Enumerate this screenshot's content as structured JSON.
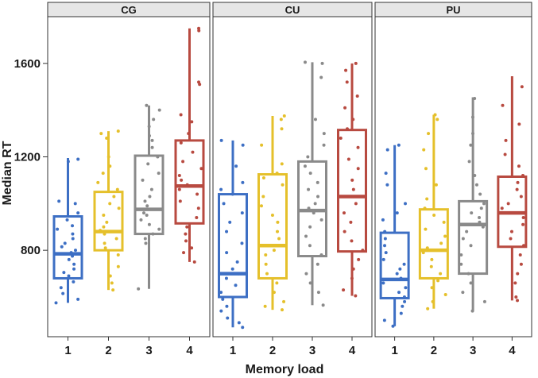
{
  "chart_data": {
    "type": "boxplot",
    "xlabel": "Memory load",
    "ylabel": "Median RT",
    "ylim": [
      430,
      1800
    ],
    "yticks": [
      800,
      1200,
      1600
    ],
    "categories": [
      "1",
      "2",
      "3",
      "4"
    ],
    "colors": [
      "#3d6fc4",
      "#e5c02b",
      "#8a8a8a",
      "#b84a40"
    ],
    "panels": [
      {
        "name": "CG",
        "boxes": [
          {
            "category": "1",
            "lower": 575,
            "q1": 680,
            "median": 785,
            "q3": 945,
            "upper": 1195,
            "points": [
              575,
              590,
              615,
              640,
              665,
              690,
              705,
              720,
              740,
              760,
              775,
              790,
              800,
              815,
              830,
              850,
              870,
              890,
              905,
              930,
              960,
              1000,
              1010,
              1180,
              1190
            ]
          },
          {
            "category": "2",
            "lower": 630,
            "q1": 800,
            "median": 880,
            "q3": 1050,
            "upper": 1310,
            "points": [
              630,
              660,
              690,
              730,
              780,
              810,
              830,
              850,
              870,
              885,
              900,
              920,
              950,
              980,
              1000,
              1030,
              1060,
              1090,
              1130,
              1160,
              1200,
              1280,
              1300,
              1310
            ]
          },
          {
            "category": "3",
            "lower": 635,
            "q1": 870,
            "median": 975,
            "q3": 1205,
            "upper": 1420,
            "points": [
              635,
              830,
              850,
              870,
              890,
              910,
              930,
              950,
              960,
              975,
              990,
              1010,
              1030,
              1060,
              1100,
              1130,
              1170,
              1200,
              1240,
              1270,
              1290,
              1330,
              1360,
              1400,
              1420
            ]
          },
          {
            "category": "4",
            "lower": 750,
            "q1": 915,
            "median": 1075,
            "q3": 1270,
            "upper": 1750,
            "points": [
              750,
              790,
              810,
              840,
              870,
              900,
              940,
              980,
              1010,
              1040,
              1060,
              1080,
              1100,
              1120,
              1150,
              1180,
              1220,
              1260,
              1300,
              1350,
              1380,
              1510,
              1520,
              1740,
              1750
            ]
          }
        ]
      },
      {
        "name": "CU",
        "boxes": [
          {
            "category": "1",
            "lower": 470,
            "q1": 600,
            "median": 700,
            "q3": 1040,
            "upper": 1270,
            "points": [
              470,
              490,
              510,
              540,
              560,
              590,
              620,
              650,
              680,
              700,
              720,
              750,
              790,
              830,
              880,
              920,
              960,
              1000,
              1040,
              1060,
              1090,
              1160,
              1250,
              1270
            ]
          },
          {
            "category": "2",
            "lower": 545,
            "q1": 680,
            "median": 820,
            "q3": 1125,
            "upper": 1375,
            "points": [
              545,
              560,
              580,
              620,
              660,
              700,
              740,
              780,
              800,
              820,
              850,
              880,
              920,
              950,
              990,
              1030,
              1080,
              1110,
              1130,
              1170,
              1250,
              1320,
              1360,
              1375
            ]
          },
          {
            "category": "3",
            "lower": 565,
            "q1": 775,
            "median": 970,
            "q3": 1180,
            "upper": 1605,
            "points": [
              565,
              620,
              660,
              700,
              740,
              780,
              820,
              860,
              900,
              930,
              960,
              980,
              1000,
              1030,
              1060,
              1090,
              1130,
              1160,
              1200,
              1250,
              1300,
              1360,
              1540,
              1600,
              1605
            ]
          },
          {
            "category": "4",
            "lower": 605,
            "q1": 795,
            "median": 1030,
            "q3": 1315,
            "upper": 1600,
            "points": [
              605,
              630,
              680,
              720,
              760,
              800,
              840,
              880,
              920,
              960,
              1000,
              1030,
              1060,
              1100,
              1150,
              1190,
              1240,
              1280,
              1320,
              1360,
              1410,
              1460,
              1520,
              1570,
              1600
            ]
          }
        ]
      },
      {
        "name": "PU",
        "boxes": [
          {
            "category": "1",
            "lower": 475,
            "q1": 595,
            "median": 675,
            "q3": 875,
            "upper": 1250,
            "points": [
              475,
              500,
              530,
              560,
              580,
              600,
              620,
              640,
              660,
              680,
              700,
              720,
              740,
              760,
              790,
              820,
              850,
              880,
              930,
              960,
              1000,
              1080,
              1130,
              1230,
              1250
            ]
          },
          {
            "category": "2",
            "lower": 550,
            "q1": 680,
            "median": 800,
            "q3": 975,
            "upper": 1380,
            "points": [
              550,
              580,
              610,
              640,
              670,
              700,
              730,
              760,
              790,
              810,
              830,
              860,
              890,
              920,
              950,
              980,
              1020,
              1080,
              1150,
              1230,
              1300,
              1360,
              1380
            ]
          },
          {
            "category": "3",
            "lower": 540,
            "q1": 700,
            "median": 910,
            "q3": 1010,
            "upper": 1455,
            "points": [
              540,
              580,
              620,
              660,
              700,
              740,
              780,
              820,
              850,
              880,
              900,
              920,
              940,
              960,
              980,
              1000,
              1040,
              1080,
              1120,
              1180,
              1250,
              1300,
              1370,
              1450
            ]
          },
          {
            "category": "4",
            "lower": 585,
            "q1": 815,
            "median": 960,
            "q3": 1115,
            "upper": 1545,
            "points": [
              585,
              600,
              660,
              700,
              740,
              780,
              820,
              850,
              880,
              910,
              940,
              960,
              980,
              1000,
              1030,
              1060,
              1090,
              1120,
              1160,
              1210,
              1270,
              1340,
              1420,
              1500
            ]
          }
        ]
      }
    ]
  }
}
